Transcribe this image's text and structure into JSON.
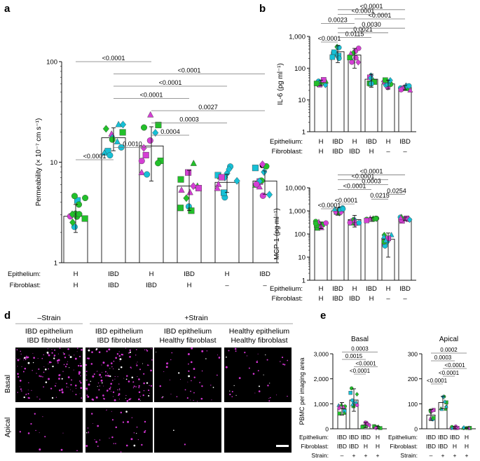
{
  "colors": {
    "green": "#22c02a",
    "cyan": "#16c0d6",
    "magenta": "#d43fd4",
    "pink": "#e84ad4",
    "bar": "#ffffff",
    "axis": "#111111",
    "micro_bg": "#000000",
    "micro_dot": "#d234d2"
  },
  "chart_data": [
    {
      "panel": "a",
      "type": "bar",
      "scale": "log",
      "ylabel": "Permeability (× 10⁻⁷ cm s⁻¹)",
      "ylim": [
        1,
        100
      ],
      "yticks": [
        "1",
        "10",
        "100"
      ],
      "row_labels": [
        "Epithelium:",
        "Fibroblast:"
      ],
      "epithelium": [
        "H",
        "IBD",
        "H",
        "IBD",
        "H",
        "IBD"
      ],
      "fibroblast": [
        "H",
        "IBD",
        "IBD",
        "H",
        "–",
        "–"
      ],
      "values": [
        2.9,
        17.5,
        14.5,
        5.8,
        6.3,
        6.5
      ],
      "sd": [
        0.9,
        4.5,
        8.0,
        2.5,
        1.3,
        1.7
      ],
      "comparisons": [
        {
          "a": 0,
          "b": 1,
          "p": "<0.0001"
        },
        {
          "a": 1,
          "b": 2,
          "p": "0.0010"
        },
        {
          "a": 2,
          "b": 3,
          "p": "0.0004"
        },
        {
          "a": 2,
          "b": 4,
          "p": "0.0003"
        },
        {
          "a": 2,
          "b": 5,
          "p": "0.0027"
        },
        {
          "a": 1,
          "b": 3,
          "p": "<0.0001"
        },
        {
          "a": 1,
          "b": 4,
          "p": "<0.0001"
        },
        {
          "a": 1,
          "b": 5,
          "p": "<0.0001"
        },
        {
          "a": 0,
          "b": 2,
          "p": "<0.0001"
        }
      ]
    },
    {
      "panel": "b",
      "type": "bar",
      "scale": "log",
      "ylabel": "IL-6 (pg ml⁻¹)",
      "ylim": [
        1,
        1000
      ],
      "yticks": [
        "1",
        "10",
        "100",
        "1,000"
      ],
      "row_labels": [
        "Epithelium:",
        "Fibroblast:"
      ],
      "epithelium": [
        "H",
        "IBD",
        "H",
        "IBD",
        "H",
        "IBD"
      ],
      "fibroblast": [
        "H",
        "IBD",
        "IBD",
        "H",
        "–",
        "–"
      ],
      "values": [
        35,
        330,
        260,
        45,
        32,
        25
      ],
      "sd": [
        7,
        180,
        160,
        20,
        10,
        4
      ],
      "comparisons": [
        {
          "a": 0,
          "b": 1,
          "p": "<0.0001"
        },
        {
          "a": 1,
          "b": 3,
          "p": "0.0115"
        },
        {
          "a": 1,
          "b": 4,
          "p": "0.0021"
        },
        {
          "a": 1,
          "b": 5,
          "p": "0.0030"
        },
        {
          "a": 0,
          "b": 2,
          "p": "0.0023"
        },
        {
          "a": 2,
          "b": 5,
          "p": "<0.0001"
        },
        {
          "a": 1,
          "b": 4,
          "p": "<0.0001"
        },
        {
          "a": 1,
          "b": 5,
          "p": "<0.0001"
        }
      ]
    },
    {
      "panel": "c",
      "type": "bar",
      "scale": "log",
      "ylabel": "MCP-1 (pg ml⁻¹)",
      "ylim": [
        1,
        10000
      ],
      "yticks": [
        "1",
        "10",
        "100",
        "1,000",
        "10,000"
      ],
      "row_labels": [
        "Epithelium:",
        "Fibroblast:"
      ],
      "epithelium": [
        "H",
        "IBD",
        "H",
        "IBD",
        "H",
        "IBD"
      ],
      "fibroblast": [
        "H",
        "IBD",
        "IBD",
        "H",
        "–",
        "–"
      ],
      "values": [
        250,
        1000,
        420,
        430,
        60,
        460
      ],
      "sd": [
        80,
        350,
        220,
        80,
        50,
        80
      ],
      "comparisons": [
        {
          "a": 0,
          "b": 1,
          "p": "<0.0001"
        },
        {
          "a": 1,
          "b": 2,
          "p": "<0.0001"
        },
        {
          "a": 3,
          "b": 4,
          "p": "0.0215"
        },
        {
          "a": 4,
          "b": 5,
          "p": "0.0254"
        },
        {
          "a": 1,
          "b": 3,
          "p": "<0.0001"
        },
        {
          "a": 2,
          "b": 4,
          "p": "0.0003"
        },
        {
          "a": 1,
          "b": 4,
          "p": "<0.0001"
        },
        {
          "a": 1,
          "b": 5,
          "p": "<0.0001"
        }
      ]
    },
    {
      "panel": "e",
      "type": "bar",
      "scale": "linear",
      "title": "Basal",
      "ylabel": "PBMC per imaging area",
      "ylim": [
        0,
        3000
      ],
      "yticks": [
        "0",
        "1,000",
        "2,000",
        "3,000"
      ],
      "row_labels": [
        "Epithelium:",
        "Fibroblast:",
        "Strain:"
      ],
      "epithelium": [
        "IBD",
        "IBD",
        "IBD",
        "H"
      ],
      "fibroblast": [
        "IBD",
        "IBD",
        "H",
        "H"
      ],
      "strain": [
        "–",
        "+",
        "+",
        "+"
      ],
      "values": [
        800,
        1150,
        150,
        60
      ],
      "sd": [
        250,
        450,
        100,
        40
      ],
      "comparisons": [
        {
          "a": 1,
          "b": 2,
          "p": "<0.0001"
        },
        {
          "a": 1,
          "b": 3,
          "p": "<0.0001"
        },
        {
          "a": 0,
          "b": 2,
          "p": "0.0015"
        },
        {
          "a": 0,
          "b": 3,
          "p": "0.0003"
        }
      ]
    },
    {
      "panel": "e",
      "type": "bar",
      "scale": "linear",
      "title": "Apical",
      "ylim": [
        0,
        300
      ],
      "yticks": [
        "0",
        "100",
        "200",
        "300"
      ],
      "row_labels": [
        "Epithelium:",
        "Fibroblast:",
        "Strain:"
      ],
      "epithelium": [
        "IBD",
        "IBD",
        "IBD",
        "H"
      ],
      "fibroblast": [
        "IBD",
        "IBD",
        "H",
        "H"
      ],
      "strain": [
        "–",
        "+",
        "+",
        "+"
      ],
      "values": [
        55,
        105,
        5,
        3
      ],
      "sd": [
        22,
        25,
        4,
        2
      ],
      "comparisons": [
        {
          "a": 0,
          "b": 1,
          "p": "<0.0001"
        },
        {
          "a": 1,
          "b": 2,
          "p": "<0.0001"
        },
        {
          "a": 1,
          "b": 3,
          "p": "<0.0001"
        },
        {
          "a": 0,
          "b": 2,
          "p": "0.0003"
        },
        {
          "a": 0,
          "b": 3,
          "p": "0.0002"
        }
      ]
    }
  ],
  "panel_labels": {
    "a": "a",
    "b": "b",
    "c": "c",
    "d": "d",
    "e": "e"
  },
  "micrographs": {
    "minus_strain": "–Strain",
    "plus_strain": "+Strain",
    "columns": [
      [
        "IBD epithelium",
        "IBD fibroblast"
      ],
      [
        "IBD epithelium",
        "IBD fibroblast"
      ],
      [
        "IBD epithelium",
        "Healthy fibroblast"
      ],
      [
        "Healthy epithelium",
        "Healthy fibroblast"
      ]
    ],
    "rows": [
      "Basal",
      "Apical"
    ],
    "density": [
      [
        0.9,
        0.95,
        0.3,
        0.25
      ],
      [
        0.08,
        0.25,
        0.01,
        0.0
      ]
    ]
  }
}
